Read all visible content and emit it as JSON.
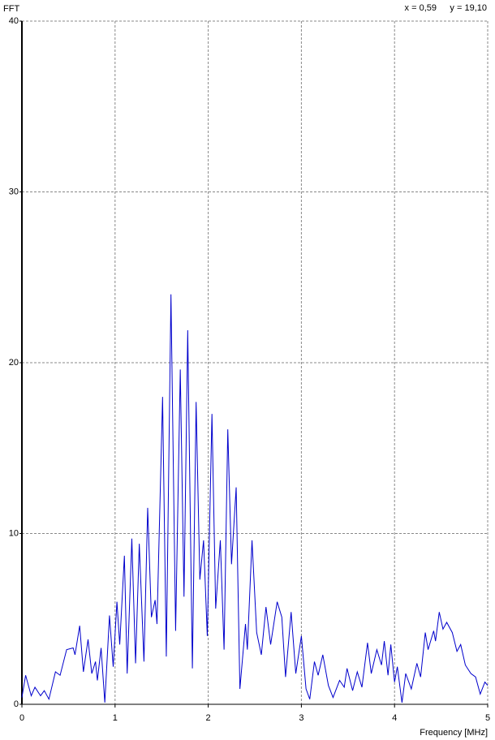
{
  "chart_data": {
    "type": "line",
    "title": "FFT",
    "x_label": "Frequency [MHz]",
    "readout": {
      "x": "x = 0,59",
      "y": "y = 19,10"
    },
    "xlim": [
      0,
      5
    ],
    "xticks": [
      0,
      1,
      2,
      3,
      4,
      5
    ],
    "ylim": [
      0,
      40
    ],
    "yticks": [
      0,
      10,
      20,
      30,
      40
    ],
    "grid": true,
    "series": [
      {
        "color": "#0000cc",
        "x": [
          0,
          0.04,
          0.1,
          0.14,
          0.2,
          0.24,
          0.29,
          0.36,
          0.41,
          0.48,
          0.55,
          0.57,
          0.62,
          0.66,
          0.71,
          0.75,
          0.79,
          0.81,
          0.85,
          0.89,
          0.94,
          0.98,
          1.02,
          1.05,
          1.1,
          1.13,
          1.18,
          1.22,
          1.26,
          1.31,
          1.35,
          1.39,
          1.43,
          1.45,
          1.51,
          1.55,
          1.6,
          1.65,
          1.7,
          1.74,
          1.78,
          1.83,
          1.87,
          1.91,
          1.95,
          1.99,
          2.04,
          2.08,
          2.13,
          2.17,
          2.21,
          2.25,
          2.3,
          2.34,
          2.4,
          2.42,
          2.47,
          2.52,
          2.57,
          2.62,
          2.67,
          2.74,
          2.79,
          2.83,
          2.89,
          2.94,
          3.0,
          3.05,
          3.09,
          3.14,
          3.18,
          3.23,
          3.29,
          3.34,
          3.41,
          3.46,
          3.49,
          3.55,
          3.6,
          3.65,
          3.71,
          3.75,
          3.81,
          3.86,
          3.89,
          3.93,
          3.96,
          4.0,
          4.03,
          4.08,
          4.12,
          4.18,
          4.24,
          4.28,
          4.33,
          4.36,
          4.42,
          4.44,
          4.48,
          4.52,
          4.56,
          4.62,
          4.67,
          4.71,
          4.76,
          4.82,
          4.87,
          4.92,
          4.97,
          5.0
        ],
        "values": [
          0.4,
          1.7,
          0.5,
          1.0,
          0.5,
          0.8,
          0.3,
          1.9,
          1.7,
          3.2,
          3.3,
          2.9,
          4.6,
          1.9,
          3.8,
          1.8,
          2.5,
          1.4,
          3.3,
          0.1,
          5.2,
          2.2,
          6.0,
          3.5,
          8.7,
          1.8,
          9.7,
          2.4,
          9.4,
          2.5,
          11.5,
          5.1,
          6.1,
          4.7,
          18.0,
          2.8,
          24.0,
          4.3,
          19.6,
          6.3,
          21.9,
          2.1,
          17.7,
          7.3,
          9.6,
          4.0,
          17.0,
          5.6,
          9.6,
          3.2,
          16.1,
          8.2,
          12.7,
          0.9,
          4.7,
          3.2,
          9.6,
          4.2,
          2.9,
          5.7,
          3.5,
          6.0,
          5.1,
          1.6,
          5.4,
          1.8,
          4.0,
          0.9,
          0.3,
          2.5,
          1.7,
          2.9,
          1.1,
          0.4,
          1.4,
          1.0,
          2.1,
          0.8,
          1.9,
          1.0,
          3.6,
          1.8,
          3.2,
          2.3,
          3.7,
          1.7,
          3.5,
          1.3,
          2.2,
          0.1,
          1.8,
          0.9,
          2.4,
          1.6,
          4.2,
          3.2,
          4.3,
          3.7,
          5.4,
          4.4,
          4.8,
          4.2,
          3.1,
          3.5,
          2.3,
          1.8,
          1.6,
          0.6,
          1.3,
          1.1
        ]
      }
    ]
  }
}
